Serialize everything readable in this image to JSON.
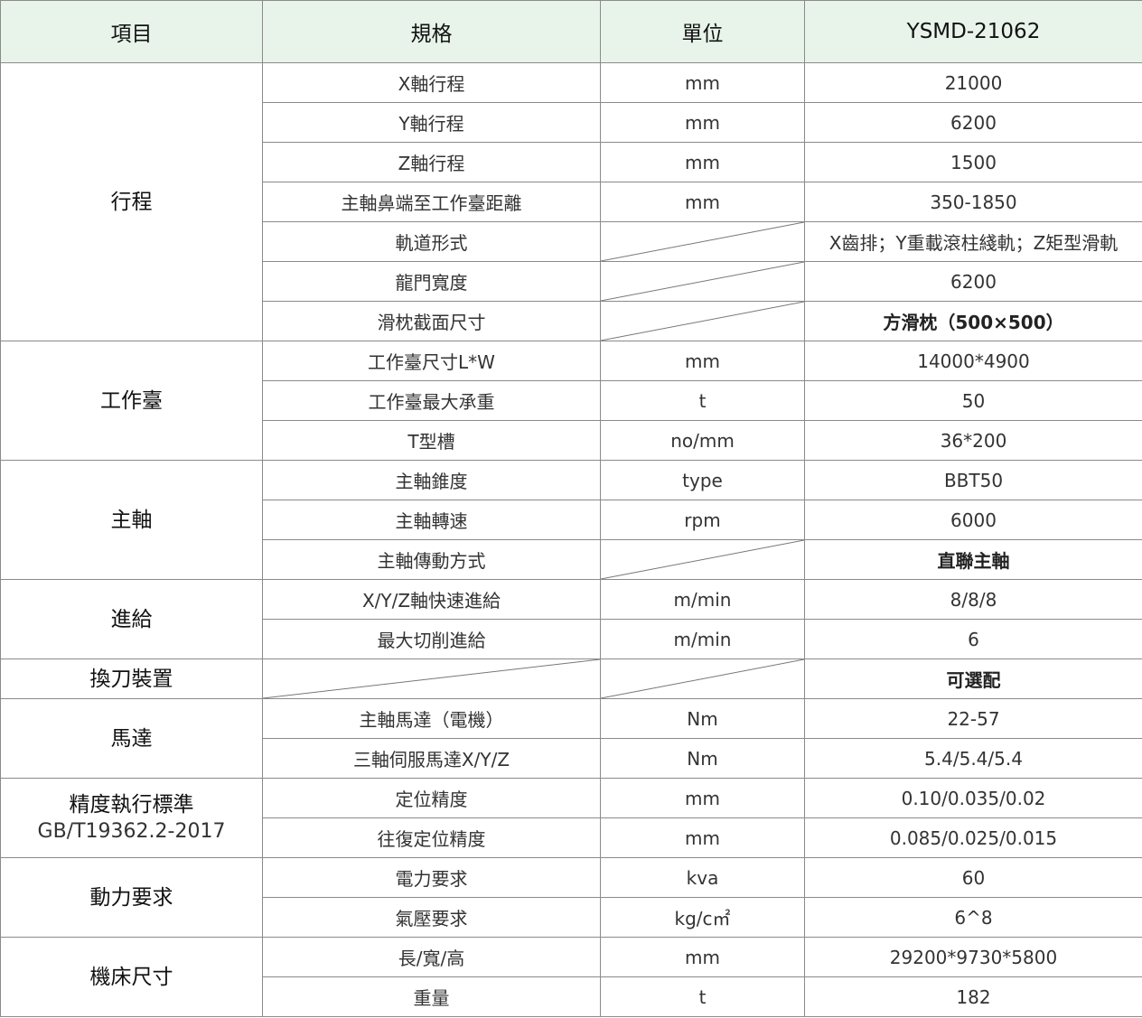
{
  "header": {
    "item": "項目",
    "spec": "規格",
    "unit": "單位",
    "model": "YSMD-21062"
  },
  "colors": {
    "header_bg": "#e8f4ea",
    "border": "#8a8a8a"
  },
  "groups": [
    {
      "category": "行程",
      "rows": [
        {
          "spec": "X軸行程",
          "unit": "mm",
          "value": "21000"
        },
        {
          "spec": "Y軸行程",
          "unit": "mm",
          "value": "6200"
        },
        {
          "spec": "Z軸行程",
          "unit": "mm",
          "value": "1500"
        },
        {
          "spec": "主軸鼻端至工作臺距離",
          "unit": "mm",
          "value": "350-1850"
        },
        {
          "spec": "軌道形式",
          "unit": null,
          "value": "X齒排；Y重載滾柱綫軌；Z矩型滑軌"
        },
        {
          "spec": "龍門寬度",
          "unit": null,
          "value": "6200"
        },
        {
          "spec": "滑枕截面尺寸",
          "unit": null,
          "value": "方滑枕（500×500）",
          "bold": true
        }
      ]
    },
    {
      "category": "工作臺",
      "rows": [
        {
          "spec": "工作臺尺寸L*W",
          "unit": "mm",
          "value": "14000*4900"
        },
        {
          "spec": "工作臺最大承重",
          "unit": "t",
          "value": "50"
        },
        {
          "spec": "T型槽",
          "unit": "no/mm",
          "value": "36*200"
        }
      ]
    },
    {
      "category": "主軸",
      "rows": [
        {
          "spec": "主軸錐度",
          "unit": "type",
          "value": "BBT50"
        },
        {
          "spec": "主軸轉速",
          "unit": "rpm",
          "value": "6000"
        },
        {
          "spec": "主軸傳動方式",
          "unit": null,
          "value": "直聯主軸",
          "bold": true
        }
      ]
    },
    {
      "category": "進給",
      "rows": [
        {
          "spec": "X/Y/Z軸快速進給",
          "unit": "m/min",
          "value": "8/8/8"
        },
        {
          "spec": "最大切削進給",
          "unit": "m/min",
          "value": "6"
        }
      ]
    },
    {
      "category": "換刀裝置",
      "rows": [
        {
          "spec": null,
          "unit": null,
          "value": "可選配",
          "bold": true
        }
      ]
    },
    {
      "category": "馬達",
      "rows": [
        {
          "spec": "主軸馬達（電機）",
          "unit": "Nm",
          "value": "22-57"
        },
        {
          "spec": "三軸伺服馬達X/Y/Z",
          "unit": "Nm",
          "value": "5.4/5.4/5.4"
        }
      ]
    },
    {
      "category": "精度執行標準",
      "category_sub": "GB/T19362.2-2017",
      "rows": [
        {
          "spec": "定位精度",
          "unit": "mm",
          "value": "0.10/0.035/0.02"
        },
        {
          "spec": "往復定位精度",
          "unit": "mm",
          "value": "0.085/0.025/0.015"
        }
      ]
    },
    {
      "category": "動力要求",
      "rows": [
        {
          "spec": "電力要求",
          "unit": "kva",
          "value": "60"
        },
        {
          "spec": "氣壓要求",
          "unit": "kg/c㎡",
          "value": "6^8"
        }
      ]
    },
    {
      "category": "機床尺寸",
      "rows": [
        {
          "spec": "長/寬/高",
          "unit": "mm",
          "value": "29200*9730*5800"
        },
        {
          "spec": "重量",
          "unit": "t",
          "value": "182"
        }
      ]
    }
  ]
}
